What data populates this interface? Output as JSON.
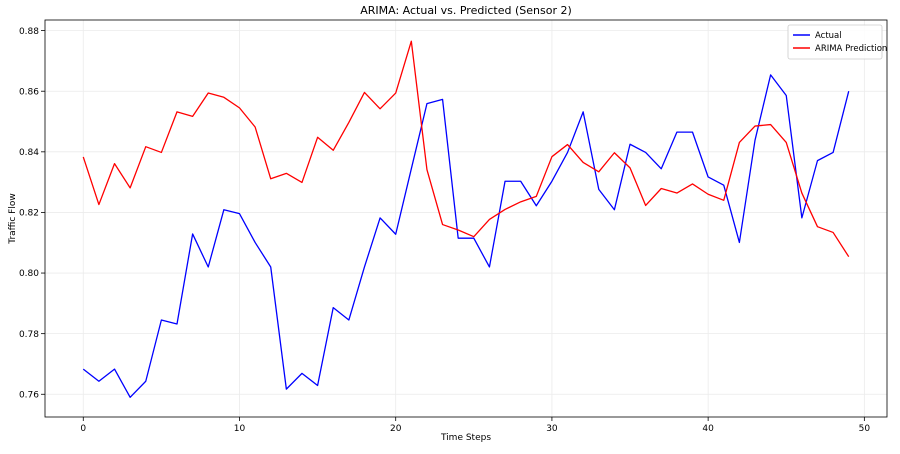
{
  "chart_data": {
    "type": "line",
    "title": "ARIMA: Actual vs. Predicted (Sensor 2)",
    "xlabel": "Time Steps",
    "ylabel": "Traffic Flow",
    "xlim": [
      -2.45,
      51.45
    ],
    "ylim": [
      0.7525,
      0.8835
    ],
    "xticks": [
      0,
      10,
      20,
      30,
      40,
      50
    ],
    "yticks": [
      0.76,
      0.78,
      0.8,
      0.82,
      0.84,
      0.86,
      0.88
    ],
    "grid": true,
    "legend_position": "top-right",
    "x": [
      0,
      1,
      2,
      3,
      4,
      5,
      6,
      7,
      8,
      9,
      10,
      11,
      12,
      13,
      14,
      15,
      16,
      17,
      18,
      19,
      20,
      21,
      22,
      23,
      24,
      25,
      26,
      27,
      28,
      29,
      30,
      31,
      32,
      33,
      34,
      35,
      36,
      37,
      38,
      39,
      40,
      41,
      42,
      43,
      44,
      45,
      46,
      47,
      48,
      49
    ],
    "series": [
      {
        "name": "Actual",
        "color": "#0000ff",
        "values": [
          0.7683,
          0.7643,
          0.7683,
          0.759,
          0.7643,
          0.7845,
          0.7832,
          0.8129,
          0.802,
          0.8209,
          0.8196,
          0.8101,
          0.802,
          0.7617,
          0.7669,
          0.7629,
          0.7886,
          0.7845,
          0.802,
          0.8182,
          0.8128,
          0.8344,
          0.8559,
          0.8573,
          0.8115,
          0.8115,
          0.802,
          0.8303,
          0.8303,
          0.8222,
          0.8303,
          0.8398,
          0.8532,
          0.8276,
          0.8209,
          0.8425,
          0.8398,
          0.8344,
          0.8465,
          0.8465,
          0.8317,
          0.829,
          0.8101,
          0.8438,
          0.8654,
          0.8586,
          0.8182,
          0.8371,
          0.8398,
          0.86
        ]
      },
      {
        "name": "ARIMA Prediction",
        "color": "#ff0000",
        "values": [
          0.8383,
          0.8226,
          0.8361,
          0.8281,
          0.8417,
          0.8398,
          0.8532,
          0.8517,
          0.8594,
          0.858,
          0.8545,
          0.8482,
          0.8311,
          0.8329,
          0.8299,
          0.8448,
          0.8405,
          0.8497,
          0.8596,
          0.8542,
          0.8594,
          0.8765,
          0.8341,
          0.816,
          0.8142,
          0.812,
          0.8177,
          0.821,
          0.8235,
          0.8253,
          0.8384,
          0.8424,
          0.8365,
          0.8334,
          0.8397,
          0.8347,
          0.8223,
          0.8279,
          0.8264,
          0.8294,
          0.826,
          0.824,
          0.8431,
          0.8485,
          0.849,
          0.8431,
          0.8264,
          0.8153,
          0.8134,
          0.8054
        ]
      }
    ]
  }
}
